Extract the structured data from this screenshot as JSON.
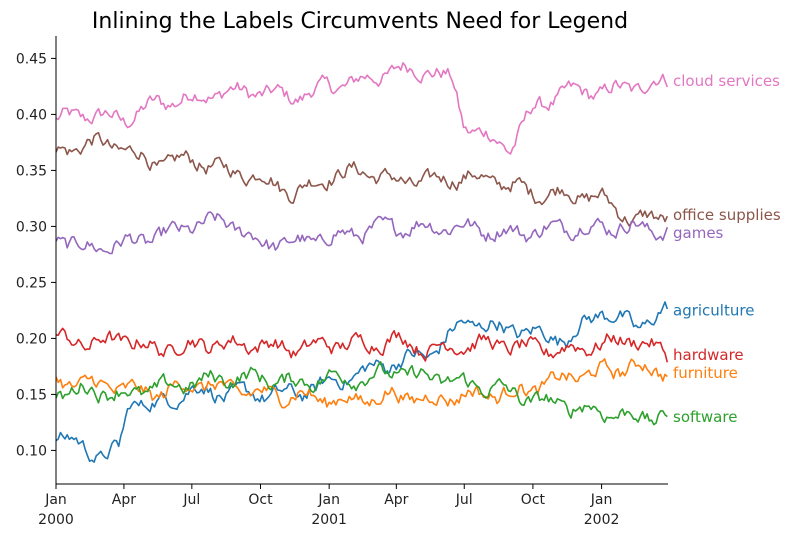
{
  "chart_data": {
    "type": "line",
    "title": "Inlining the Labels Circumvents Need for Legend",
    "xlabel": "",
    "ylabel": "",
    "x_range": [
      "2000-01-01",
      "2002-03-31"
    ],
    "ylim": [
      0.07,
      0.47
    ],
    "grid": false,
    "legend": "none (labels inlined at right end of each series)",
    "x_ticks": [
      {
        "date": "2000-01-01",
        "label": "Jan",
        "year": "2000"
      },
      {
        "date": "2000-04-01",
        "label": "Apr",
        "year": ""
      },
      {
        "date": "2000-07-01",
        "label": "Jul",
        "year": ""
      },
      {
        "date": "2000-10-01",
        "label": "Oct",
        "year": ""
      },
      {
        "date": "2001-01-01",
        "label": "Jan",
        "year": "2001"
      },
      {
        "date": "2001-04-01",
        "label": "Apr",
        "year": ""
      },
      {
        "date": "2001-07-01",
        "label": "Jul",
        "year": ""
      },
      {
        "date": "2001-10-01",
        "label": "Oct",
        "year": ""
      },
      {
        "date": "2002-01-01",
        "label": "Jan",
        "year": "2002"
      }
    ],
    "y_ticks": [
      "0.10",
      "0.15",
      "0.20",
      "0.25",
      "0.30",
      "0.35",
      "0.40",
      "0.45"
    ],
    "series": [
      {
        "name": "cloud services",
        "color": "#e377c2",
        "x": [
          "2000-01-01",
          "2000-02-15",
          "2000-04-01",
          "2000-05-15",
          "2000-07-01",
          "2000-08-15",
          "2000-10-01",
          "2000-11-15",
          "2001-01-01",
          "2001-02-15",
          "2001-04-01",
          "2001-05-15",
          "2001-06-15",
          "2001-07-01",
          "2001-08-01",
          "2001-09-01",
          "2001-10-01",
          "2001-11-15",
          "2002-01-01",
          "2002-02-15",
          "2002-03-31"
        ],
        "y": [
          0.395,
          0.4,
          0.395,
          0.41,
          0.415,
          0.42,
          0.42,
          0.415,
          0.425,
          0.43,
          0.44,
          0.44,
          0.43,
          0.39,
          0.38,
          0.37,
          0.405,
          0.42,
          0.42,
          0.425,
          0.43
        ]
      },
      {
        "name": "office supplies",
        "color": "#8c564b",
        "x": [
          "2000-01-01",
          "2000-02-15",
          "2000-04-01",
          "2000-05-15",
          "2000-07-01",
          "2000-08-15",
          "2000-10-01",
          "2000-11-15",
          "2001-01-01",
          "2001-02-15",
          "2001-04-01",
          "2001-05-15",
          "2001-07-01",
          "2001-08-15",
          "2001-10-01",
          "2001-11-15",
          "2002-01-01",
          "2002-02-15",
          "2002-03-31"
        ],
        "y": [
          0.365,
          0.375,
          0.37,
          0.355,
          0.36,
          0.35,
          0.345,
          0.33,
          0.345,
          0.35,
          0.34,
          0.34,
          0.345,
          0.34,
          0.33,
          0.33,
          0.325,
          0.305,
          0.31
        ]
      },
      {
        "name": "games",
        "color": "#9467bd",
        "x": [
          "2000-01-01",
          "2000-02-15",
          "2000-04-01",
          "2000-05-15",
          "2000-07-01",
          "2000-08-15",
          "2000-10-01",
          "2000-11-15",
          "2001-01-01",
          "2001-02-15",
          "2001-04-01",
          "2001-05-15",
          "2001-07-01",
          "2001-08-15",
          "2001-10-01",
          "2001-11-15",
          "2002-01-01",
          "2002-02-15",
          "2002-03-31"
        ],
        "y": [
          0.29,
          0.28,
          0.285,
          0.29,
          0.3,
          0.305,
          0.285,
          0.285,
          0.29,
          0.295,
          0.3,
          0.3,
          0.3,
          0.295,
          0.295,
          0.3,
          0.3,
          0.3,
          0.295
        ]
      },
      {
        "name": "agriculture",
        "color": "#1f77b4",
        "x": [
          "2000-01-01",
          "2000-02-01",
          "2000-03-01",
          "2000-03-25",
          "2000-04-10",
          "2000-05-15",
          "2000-07-01",
          "2000-08-15",
          "2000-10-01",
          "2000-11-15",
          "2001-01-01",
          "2001-02-15",
          "2001-04-01",
          "2001-05-15",
          "2001-07-01",
          "2001-08-15",
          "2001-10-01",
          "2001-11-15",
          "2002-01-01",
          "2002-02-15",
          "2002-03-31"
        ],
        "y": [
          0.115,
          0.105,
          0.095,
          0.1,
          0.145,
          0.14,
          0.155,
          0.15,
          0.15,
          0.15,
          0.16,
          0.17,
          0.18,
          0.185,
          0.215,
          0.21,
          0.205,
          0.2,
          0.225,
          0.21,
          0.225
        ]
      },
      {
        "name": "hardware",
        "color": "#d62728",
        "x": [
          "2000-01-01",
          "2000-02-15",
          "2000-04-01",
          "2000-05-15",
          "2000-07-01",
          "2000-08-15",
          "2000-10-01",
          "2000-11-15",
          "2001-01-01",
          "2001-02-15",
          "2001-04-01",
          "2001-05-15",
          "2001-07-01",
          "2001-08-15",
          "2001-10-01",
          "2001-11-15",
          "2002-01-01",
          "2002-02-15",
          "2002-03-31"
        ],
        "y": [
          0.2,
          0.195,
          0.2,
          0.19,
          0.195,
          0.195,
          0.195,
          0.19,
          0.195,
          0.195,
          0.2,
          0.19,
          0.195,
          0.195,
          0.19,
          0.19,
          0.195,
          0.2,
          0.185
        ]
      },
      {
        "name": "furniture",
        "color": "#ff7f0e",
        "x": [
          "2000-01-01",
          "2000-02-15",
          "2000-04-01",
          "2000-05-15",
          "2000-07-01",
          "2000-08-15",
          "2000-10-01",
          "2000-11-15",
          "2001-01-01",
          "2001-02-15",
          "2001-04-01",
          "2001-05-15",
          "2001-07-01",
          "2001-08-15",
          "2001-10-01",
          "2001-11-15",
          "2002-01-01",
          "2002-02-15",
          "2002-03-31"
        ],
        "y": [
          0.16,
          0.16,
          0.155,
          0.15,
          0.16,
          0.155,
          0.15,
          0.15,
          0.145,
          0.145,
          0.15,
          0.145,
          0.15,
          0.15,
          0.155,
          0.165,
          0.17,
          0.175,
          0.17
        ]
      },
      {
        "name": "software",
        "color": "#2ca02c",
        "x": [
          "2000-01-01",
          "2000-02-15",
          "2000-04-01",
          "2000-05-15",
          "2000-07-01",
          "2000-08-15",
          "2000-10-01",
          "2000-11-15",
          "2001-01-01",
          "2001-02-15",
          "2001-04-01",
          "2001-05-15",
          "2001-07-01",
          "2001-08-15",
          "2001-10-01",
          "2001-11-15",
          "2002-01-01",
          "2002-02-15",
          "2002-03-31"
        ],
        "y": [
          0.15,
          0.155,
          0.15,
          0.155,
          0.16,
          0.165,
          0.165,
          0.16,
          0.165,
          0.165,
          0.17,
          0.165,
          0.16,
          0.155,
          0.145,
          0.14,
          0.135,
          0.13,
          0.13
        ]
      }
    ]
  }
}
